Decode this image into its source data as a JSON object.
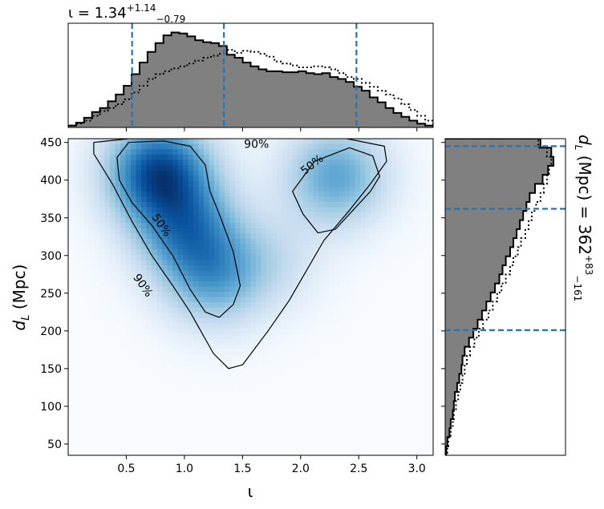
{
  "chart_data": [
    {
      "type": "heatmap",
      "panel": "joint",
      "xlabel_symbol": "ι",
      "ylabel_base": "d",
      "ylabel_sub": "L",
      "ylabel_unit": " (Mpc)",
      "xlim": [
        0.0,
        3.14
      ],
      "ylim": [
        35,
        455
      ],
      "xticks": [
        "0.5",
        "1.0",
        "1.5",
        "2.0",
        "2.5",
        "3.0"
      ],
      "yticks": [
        "50",
        "100",
        "150",
        "200",
        "250",
        "300",
        "350",
        "400",
        "450"
      ],
      "colormap": "Blues",
      "density_modes": [
        {
          "x": 0.78,
          "y": 410,
          "weight": 1.0
        },
        {
          "x": 1.02,
          "y": 335,
          "weight": 0.62
        },
        {
          "x": 1.25,
          "y": 272,
          "weight": 0.5
        },
        {
          "x": 2.3,
          "y": 405,
          "weight": 0.55
        },
        {
          "x": 1.75,
          "y": 295,
          "weight": 0.18
        }
      ],
      "contours": [
        {
          "label": "90%",
          "points": [
            [
              0.22,
              450
            ],
            [
              0.7,
              458
            ],
            [
              1.5,
              457
            ],
            [
              2.3,
              458
            ],
            [
              2.72,
              445
            ],
            [
              2.74,
              425
            ],
            [
              2.6,
              395
            ],
            [
              2.42,
              360
            ],
            [
              2.2,
              320
            ],
            [
              1.9,
              240
            ],
            [
              1.72,
              200
            ],
            [
              1.5,
              155
            ],
            [
              1.38,
              150
            ],
            [
              1.25,
              170
            ],
            [
              1.05,
              225
            ],
            [
              0.9,
              260
            ],
            [
              0.72,
              300
            ],
            [
              0.55,
              345
            ],
            [
              0.38,
              395
            ],
            [
              0.22,
              435
            ]
          ]
        },
        {
          "label": "50%",
          "points": [
            [
              0.42,
              430
            ],
            [
              0.52,
              450
            ],
            [
              0.82,
              452
            ],
            [
              1.05,
              445
            ],
            [
              1.18,
              420
            ],
            [
              1.22,
              385
            ],
            [
              1.3,
              355
            ],
            [
              1.42,
              305
            ],
            [
              1.48,
              260
            ],
            [
              1.42,
              235
            ],
            [
              1.3,
              218
            ],
            [
              1.18,
              225
            ],
            [
              1.05,
              255
            ],
            [
              0.9,
              300
            ],
            [
              0.72,
              340
            ],
            [
              0.55,
              370
            ],
            [
              0.44,
              400
            ]
          ]
        },
        {
          "label": "50%",
          "points": [
            [
              1.93,
              385
            ],
            [
              2.12,
              425
            ],
            [
              2.42,
              443
            ],
            [
              2.62,
              432
            ],
            [
              2.68,
              405
            ],
            [
              2.6,
              385
            ],
            [
              2.45,
              360
            ],
            [
              2.3,
              335
            ],
            [
              2.15,
              330
            ],
            [
              2.02,
              355
            ]
          ]
        }
      ],
      "contour_labels": [
        {
          "text": "90%",
          "x": 1.62,
          "y": 447,
          "angle": 0
        },
        {
          "text": "50%",
          "x": 2.1,
          "y": 420,
          "angle": -38
        },
        {
          "text": "50%",
          "x": 0.8,
          "y": 340,
          "angle": 55
        },
        {
          "text": "90%",
          "x": 0.64,
          "y": 260,
          "angle": 55
        }
      ]
    },
    {
      "type": "area",
      "panel": "top-marginal",
      "title_main": "ι = 1.34",
      "title_sup": "+1.14",
      "title_sub": "−0.79",
      "x_range": [
        0.0,
        3.14
      ],
      "series": [
        {
          "style": "filled-step",
          "values": [
            0.02,
            0.05,
            0.1,
            0.16,
            0.2,
            0.27,
            0.34,
            0.43,
            0.55,
            0.67,
            0.78,
            0.87,
            0.95,
            0.98,
            0.97,
            0.94,
            0.9,
            0.88,
            0.87,
            0.84,
            0.75,
            0.72,
            0.67,
            0.63,
            0.6,
            0.58,
            0.58,
            0.57,
            0.57,
            0.58,
            0.56,
            0.55,
            0.56,
            0.52,
            0.5,
            0.47,
            0.42,
            0.38,
            0.31,
            0.26,
            0.2,
            0.15,
            0.11,
            0.07,
            0.04,
            0.02
          ]
        },
        {
          "style": "dotted-step",
          "values": [
            0.02,
            0.04,
            0.07,
            0.12,
            0.17,
            0.2,
            0.24,
            0.29,
            0.36,
            0.43,
            0.5,
            0.55,
            0.58,
            0.61,
            0.63,
            0.66,
            0.69,
            0.72,
            0.74,
            0.76,
            0.8,
            0.77,
            0.79,
            0.78,
            0.76,
            0.73,
            0.68,
            0.66,
            0.64,
            0.62,
            0.62,
            0.63,
            0.62,
            0.6,
            0.56,
            0.52,
            0.5,
            0.46,
            0.42,
            0.38,
            0.34,
            0.3,
            0.24,
            0.18,
            0.12,
            0.07
          ]
        }
      ],
      "vlines": [
        0.55,
        1.34,
        2.48
      ]
    },
    {
      "type": "area",
      "panel": "right-marginal",
      "title_base": "d",
      "title_sub_letter": "L",
      "title_unit": " (Mpc) = 362",
      "title_sup": "+83",
      "title_sub": "−161",
      "y_range": [
        35,
        455
      ],
      "series": [
        {
          "style": "filled-step",
          "values": [
            0.01,
            0.02,
            0.04,
            0.05,
            0.07,
            0.08,
            0.09,
            0.11,
            0.13,
            0.15,
            0.16,
            0.18,
            0.22,
            0.26,
            0.3,
            0.34,
            0.38,
            0.42,
            0.46,
            0.5,
            0.53,
            0.56,
            0.6,
            0.63,
            0.66,
            0.69,
            0.72,
            0.75,
            0.78,
            0.83,
            0.9,
            0.95,
            1.0,
            0.98,
            0.88
          ]
        },
        {
          "style": "dotted-step",
          "values": [
            0.02,
            0.03,
            0.05,
            0.07,
            0.08,
            0.1,
            0.12,
            0.14,
            0.16,
            0.18,
            0.2,
            0.23,
            0.27,
            0.31,
            0.35,
            0.4,
            0.44,
            0.48,
            0.52,
            0.56,
            0.6,
            0.63,
            0.67,
            0.7,
            0.74,
            0.77,
            0.8,
            0.84,
            0.88,
            0.91,
            0.94,
            0.96,
            0.98,
            0.94,
            0.86
          ]
        }
      ],
      "hlines": [
        201,
        362,
        445
      ]
    }
  ]
}
